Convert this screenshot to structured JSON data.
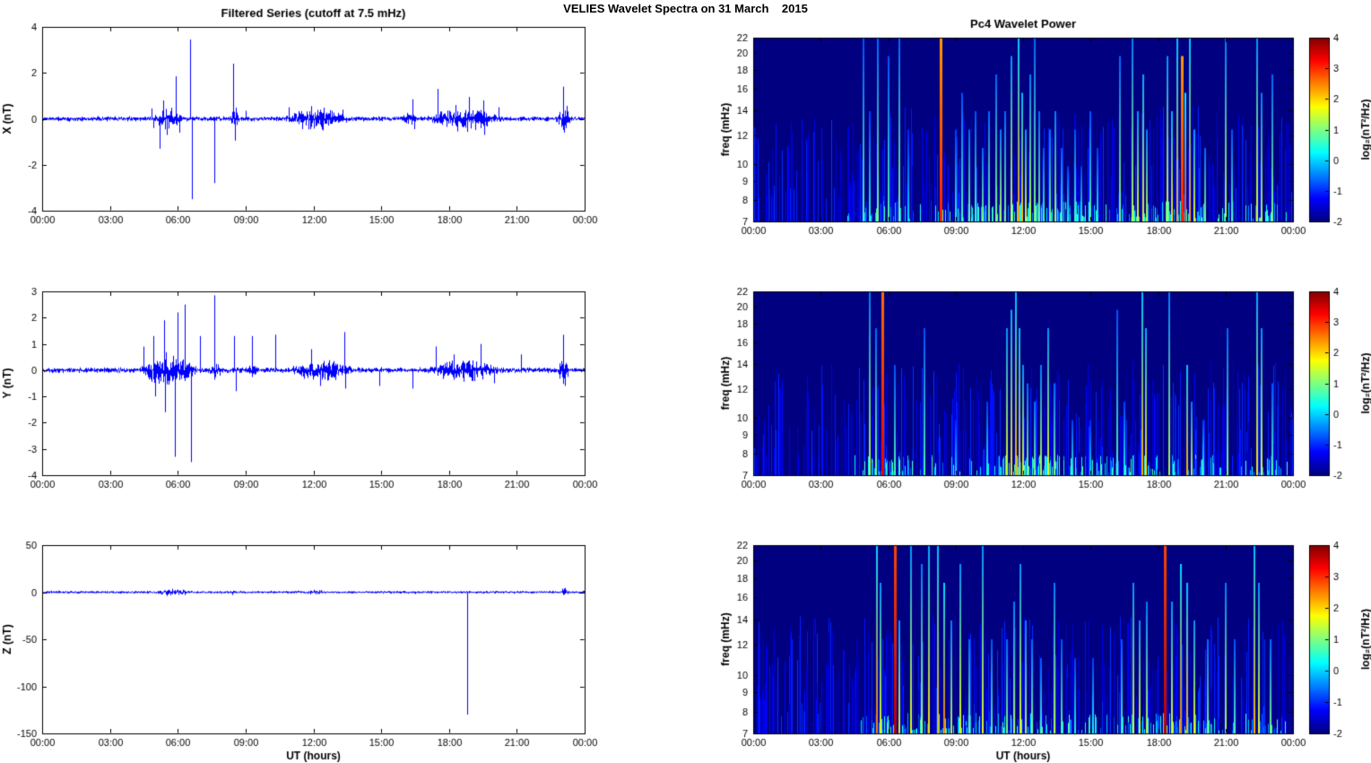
{
  "figure": {
    "title": "VELIES Wavelet Spectra on 31 March    2015",
    "background": "#ffffff",
    "line_color": "#0000ff",
    "axis_color": "#000000"
  },
  "time_axis": {
    "label": "UT (hours)",
    "ticks": [
      "00:00",
      "03:00",
      "06:00",
      "09:00",
      "12:00",
      "15:00",
      "18:00",
      "21:00",
      "00:00"
    ],
    "tick_hours": [
      0,
      3,
      6,
      9,
      12,
      15,
      18,
      21,
      24
    ],
    "range_hours": [
      0,
      24
    ]
  },
  "colorbar": {
    "label": "log₂(nT²/Hz)",
    "ticks": [
      4,
      3,
      2,
      1,
      0,
      -1,
      -2
    ],
    "range": [
      -2,
      4
    ],
    "colormap": "jet"
  },
  "chart_data": [
    {
      "id": "x-series",
      "type": "line",
      "title": "Filtered Series (cutoff at 7.5 mHz)",
      "ylabel": "X (nT)",
      "ylim": [
        -4,
        4
      ],
      "yticks": [
        4,
        2,
        0,
        -2,
        -4
      ],
      "noise_amplitude": 0.06,
      "noise_seed": 11,
      "bursts": [
        [
          4.9,
          6.2,
          0.22
        ],
        [
          8.3,
          8.7,
          0.3
        ],
        [
          10.6,
          13.6,
          0.22
        ],
        [
          15.8,
          16.6,
          0.12
        ],
        [
          17.0,
          20.4,
          0.22
        ],
        [
          22.7,
          23.4,
          0.3
        ]
      ],
      "spikes": [
        [
          4.85,
          0.45
        ],
        [
          4.9,
          -0.4
        ],
        [
          5.2,
          -1.3
        ],
        [
          5.35,
          0.8
        ],
        [
          5.5,
          -0.7
        ],
        [
          5.9,
          1.85
        ],
        [
          6.05,
          -0.6
        ],
        [
          6.55,
          3.45
        ],
        [
          6.62,
          -3.5
        ],
        [
          7.6,
          -2.8
        ],
        [
          8.45,
          2.4
        ],
        [
          8.52,
          -0.95
        ],
        [
          9.0,
          0.35
        ],
        [
          10.9,
          0.5
        ],
        [
          11.5,
          -0.45
        ],
        [
          11.9,
          0.55
        ],
        [
          12.4,
          -0.5
        ],
        [
          13.3,
          0.4
        ],
        [
          16.4,
          0.85
        ],
        [
          16.45,
          -0.45
        ],
        [
          17.5,
          1.3
        ],
        [
          18.3,
          0.6
        ],
        [
          18.35,
          -0.55
        ],
        [
          18.9,
          0.95
        ],
        [
          19.5,
          0.8
        ],
        [
          19.55,
          -0.7
        ],
        [
          20.2,
          0.5
        ],
        [
          23.05,
          1.4
        ],
        [
          23.1,
          -0.6
        ]
      ]
    },
    {
      "id": "y-series",
      "type": "line",
      "title": "",
      "ylabel": "Y (nT)",
      "ylim": [
        -4,
        3
      ],
      "yticks": [
        3,
        2,
        1,
        0,
        -1,
        -2,
        -3,
        -4
      ],
      "noise_amplitude": 0.06,
      "noise_seed": 12,
      "bursts": [
        [
          4.3,
          6.9,
          0.3
        ],
        [
          7.4,
          7.9,
          0.15
        ],
        [
          9.0,
          9.5,
          0.1
        ],
        [
          11.0,
          13.7,
          0.22
        ],
        [
          17.0,
          20.3,
          0.18
        ],
        [
          22.8,
          23.3,
          0.25
        ]
      ],
      "spikes": [
        [
          4.5,
          0.9
        ],
        [
          4.9,
          1.3
        ],
        [
          5.0,
          -1.0
        ],
        [
          5.4,
          1.9
        ],
        [
          5.45,
          -1.6
        ],
        [
          5.88,
          -3.3
        ],
        [
          6.0,
          2.2
        ],
        [
          6.3,
          2.5
        ],
        [
          6.6,
          -3.5
        ],
        [
          7.0,
          1.3
        ],
        [
          7.6,
          2.85
        ],
        [
          8.5,
          1.3
        ],
        [
          8.55,
          -0.8
        ],
        [
          9.3,
          1.3
        ],
        [
          10.3,
          1.35
        ],
        [
          11.9,
          0.8
        ],
        [
          12.3,
          -0.6
        ],
        [
          13.35,
          1.45
        ],
        [
          13.4,
          -0.7
        ],
        [
          14.9,
          -0.6
        ],
        [
          16.4,
          -0.7
        ],
        [
          17.4,
          0.9
        ],
        [
          18.2,
          0.6
        ],
        [
          19.4,
          1.0
        ],
        [
          20.0,
          -0.5
        ],
        [
          21.2,
          0.6
        ],
        [
          23.05,
          1.35
        ],
        [
          23.12,
          -0.6
        ]
      ]
    },
    {
      "id": "z-series",
      "type": "line",
      "title": "",
      "ylabel": "Z (nT)",
      "ylim": [
        -150,
        50
      ],
      "yticks": [
        50,
        0,
        -50,
        -100,
        -150
      ],
      "noise_amplitude": 0.8,
      "noise_seed": 13,
      "bursts": [
        [
          5.0,
          6.5,
          1.2
        ],
        [
          11.5,
          12.5,
          0.8
        ],
        [
          22.9,
          23.3,
          1.5
        ]
      ],
      "spikes": [
        [
          5.5,
          -4
        ],
        [
          6.3,
          -3
        ],
        [
          8.4,
          -3
        ],
        [
          12.0,
          2.5
        ],
        [
          16.5,
          -2
        ],
        [
          18.82,
          -130
        ],
        [
          23.0,
          3
        ],
        [
          23.05,
          -3
        ]
      ]
    },
    {
      "id": "x-wavelet",
      "type": "heatmap",
      "title": "Pc4 Wavelet Power",
      "ylabel": "freq (mHz)",
      "freq_ticks": [
        7,
        8,
        9,
        10,
        12,
        14,
        16,
        18,
        20,
        22
      ],
      "freq_range": [
        7,
        22
      ],
      "power_range_log2": [
        -2,
        4
      ],
      "texture_seed": 21,
      "streaks": [
        [
          4.9,
          1.0,
          0.45
        ],
        [
          5.2,
          0.6,
          0.4
        ],
        [
          5.55,
          1.0,
          0.5
        ],
        [
          6.0,
          0.9,
          0.45
        ],
        [
          6.5,
          1.0,
          0.5
        ],
        [
          6.9,
          0.5,
          0.35
        ],
        [
          8.35,
          1.0,
          0.85
        ],
        [
          9.0,
          0.5,
          0.4
        ],
        [
          9.3,
          0.7,
          0.45
        ],
        [
          9.6,
          0.5,
          0.5
        ],
        [
          9.9,
          0.6,
          0.45
        ],
        [
          10.2,
          0.4,
          0.5
        ],
        [
          10.5,
          0.6,
          0.5
        ],
        [
          10.8,
          0.8,
          0.5
        ],
        [
          11.0,
          0.5,
          0.55
        ],
        [
          11.2,
          0.6,
          0.5
        ],
        [
          11.5,
          0.9,
          0.6
        ],
        [
          11.8,
          1.0,
          0.72
        ],
        [
          11.95,
          0.7,
          0.68
        ],
        [
          12.1,
          0.5,
          0.6
        ],
        [
          12.3,
          0.8,
          0.55
        ],
        [
          12.5,
          1.0,
          0.5
        ],
        [
          12.7,
          0.6,
          0.5
        ],
        [
          12.9,
          0.4,
          0.45
        ],
        [
          13.2,
          0.5,
          0.5
        ],
        [
          13.45,
          0.6,
          0.55
        ],
        [
          13.7,
          0.4,
          0.45
        ],
        [
          14.0,
          0.3,
          0.4
        ],
        [
          14.3,
          0.5,
          0.45
        ],
        [
          14.6,
          0.3,
          0.4
        ],
        [
          15.0,
          0.6,
          0.45
        ],
        [
          15.3,
          0.4,
          0.4
        ],
        [
          16.3,
          0.9,
          0.5
        ],
        [
          16.85,
          1.0,
          0.55
        ],
        [
          17.1,
          0.6,
          0.6
        ],
        [
          17.35,
          0.8,
          0.65
        ],
        [
          17.5,
          0.5,
          0.55
        ],
        [
          18.4,
          0.9,
          0.6
        ],
        [
          18.6,
          0.6,
          0.65
        ],
        [
          18.85,
          1.0,
          0.7
        ],
        [
          19.05,
          0.9,
          0.85
        ],
        [
          19.2,
          0.7,
          0.8
        ],
        [
          19.4,
          1.0,
          0.72
        ],
        [
          19.6,
          0.5,
          0.6
        ],
        [
          20.1,
          0.4,
          0.5
        ],
        [
          21.0,
          1.0,
          0.55
        ],
        [
          21.3,
          0.5,
          0.45
        ],
        [
          22.4,
          1.0,
          0.6
        ],
        [
          22.6,
          0.7,
          0.55
        ],
        [
          23.1,
          0.8,
          0.5
        ]
      ]
    },
    {
      "id": "y-wavelet",
      "type": "heatmap",
      "title": "",
      "ylabel": "freq (mHz)",
      "freq_ticks": [
        7,
        8,
        9,
        10,
        12,
        14,
        16,
        18,
        20,
        22
      ],
      "freq_range": [
        7,
        22
      ],
      "power_range_log2": [
        -2,
        4
      ],
      "texture_seed": 22,
      "streaks": [
        [
          5.2,
          1.0,
          0.55
        ],
        [
          5.45,
          0.8,
          0.5
        ],
        [
          5.75,
          1.0,
          0.9
        ],
        [
          6.3,
          0.6,
          0.45
        ],
        [
          7.6,
          0.8,
          0.45
        ],
        [
          9.0,
          0.3,
          0.35
        ],
        [
          10.4,
          0.4,
          0.4
        ],
        [
          11.3,
          0.8,
          0.6
        ],
        [
          11.5,
          0.9,
          0.65
        ],
        [
          11.7,
          1.0,
          0.7
        ],
        [
          11.85,
          0.8,
          0.68
        ],
        [
          12.0,
          0.6,
          0.6
        ],
        [
          12.2,
          0.5,
          0.5
        ],
        [
          12.5,
          0.4,
          0.5
        ],
        [
          12.8,
          0.6,
          0.55
        ],
        [
          13.1,
          0.8,
          0.6
        ],
        [
          13.4,
          0.5,
          0.5
        ],
        [
          14.2,
          0.3,
          0.4
        ],
        [
          15.0,
          0.3,
          0.35
        ],
        [
          16.2,
          0.9,
          0.45
        ],
        [
          16.5,
          0.4,
          0.4
        ],
        [
          17.3,
          1.0,
          0.7
        ],
        [
          17.45,
          0.8,
          0.65
        ],
        [
          18.5,
          1.0,
          0.55
        ],
        [
          19.3,
          0.6,
          0.7
        ],
        [
          19.5,
          0.4,
          0.55
        ],
        [
          20.0,
          0.3,
          0.4
        ],
        [
          21.1,
          0.8,
          0.5
        ],
        [
          22.4,
          1.0,
          0.65
        ],
        [
          22.6,
          0.8,
          0.6
        ],
        [
          23.1,
          0.5,
          0.45
        ]
      ]
    },
    {
      "id": "z-wavelet",
      "type": "heatmap",
      "title": "",
      "ylabel": "freq (mHz)",
      "freq_ticks": [
        7,
        8,
        9,
        10,
        12,
        14,
        16,
        18,
        20,
        22
      ],
      "freq_range": [
        7,
        22
      ],
      "power_range_log2": [
        -2,
        4
      ],
      "texture_seed": 23,
      "streaks": [
        [
          5.5,
          1.0,
          0.75
        ],
        [
          5.65,
          0.8,
          0.6
        ],
        [
          6.3,
          1.0,
          0.95
        ],
        [
          6.5,
          0.6,
          0.6
        ],
        [
          7.0,
          1.0,
          0.6
        ],
        [
          7.5,
          0.9,
          0.55
        ],
        [
          7.8,
          1.0,
          0.65
        ],
        [
          8.2,
          1.0,
          0.7
        ],
        [
          8.5,
          0.8,
          0.75
        ],
        [
          8.8,
          0.6,
          0.55
        ],
        [
          9.2,
          0.9,
          0.6
        ],
        [
          9.6,
          0.5,
          0.5
        ],
        [
          10.2,
          1.0,
          0.6
        ],
        [
          10.6,
          0.5,
          0.45
        ],
        [
          11.3,
          0.5,
          0.5
        ],
        [
          11.6,
          0.7,
          0.55
        ],
        [
          11.9,
          0.9,
          0.6
        ],
        [
          12.1,
          0.6,
          0.55
        ],
        [
          12.4,
          0.5,
          0.5
        ],
        [
          12.8,
          0.4,
          0.45
        ],
        [
          13.4,
          0.8,
          0.55
        ],
        [
          13.7,
          0.5,
          0.45
        ],
        [
          14.3,
          0.4,
          0.4
        ],
        [
          15.1,
          0.4,
          0.4
        ],
        [
          16.4,
          0.5,
          0.45
        ],
        [
          16.9,
          0.8,
          0.6
        ],
        [
          17.2,
          0.6,
          0.6
        ],
        [
          17.5,
          0.7,
          0.55
        ],
        [
          18.3,
          1.0,
          0.95
        ],
        [
          18.6,
          0.7,
          0.6
        ],
        [
          19.0,
          0.9,
          0.75
        ],
        [
          19.3,
          0.8,
          0.7
        ],
        [
          19.6,
          0.6,
          0.6
        ],
        [
          20.2,
          0.5,
          0.5
        ],
        [
          21.0,
          0.8,
          0.55
        ],
        [
          21.4,
          0.5,
          0.45
        ],
        [
          22.3,
          1.0,
          0.7
        ],
        [
          22.5,
          0.8,
          0.6
        ],
        [
          23.0,
          0.5,
          0.5
        ]
      ]
    }
  ]
}
